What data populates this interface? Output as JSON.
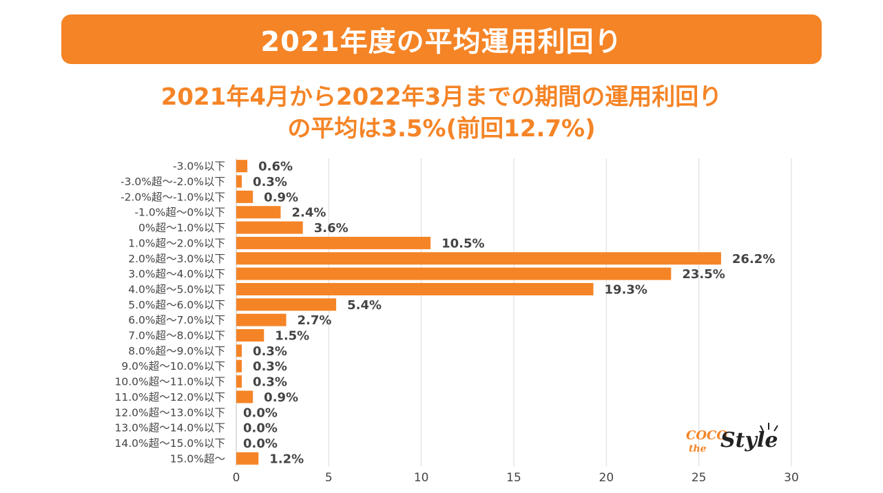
{
  "header": {
    "title": "2021年度の平均運用利回り",
    "subtitle_line1": "2021年4月から2022年3月までの期間の運用利回り",
    "subtitle_line2": "の平均は3.5%(前回12.7%)"
  },
  "logo": {
    "coco": "COCO",
    "the": "the",
    "style": "Style"
  },
  "colors": {
    "accent": "#f58426",
    "text": "#444444",
    "grid": "#d9d9d9"
  },
  "chart_data": {
    "type": "bar",
    "orientation": "horizontal",
    "categories": [
      "-3.0%以下",
      "-3.0%超～-2.0%以下",
      "-2.0%超～-1.0%以下",
      "-1.0%超～0%以下",
      "0%超～1.0%以下",
      "1.0%超～2.0%以下",
      "2.0%超～3.0%以下",
      "3.0%超～4.0%以下",
      "4.0%超～5.0%以下",
      "5.0%超～6.0%以下",
      "6.0%超～7.0%以下",
      "7.0%超～8.0%以下",
      "8.0%超～9.0%以下",
      "9.0%超～10.0%以下",
      "10.0%超～11.0%以下",
      "11.0%超～12.0%以下",
      "12.0%超～13.0%以下",
      "13.0%超～14.0%以下",
      "14.0%超～15.0%以下",
      "15.0%超～"
    ],
    "values": [
      0.6,
      0.3,
      0.9,
      2.4,
      3.6,
      10.5,
      26.2,
      23.5,
      19.3,
      5.4,
      2.7,
      1.5,
      0.3,
      0.3,
      0.3,
      0.9,
      0.0,
      0.0,
      0.0,
      1.2
    ],
    "value_labels": [
      "0.6%",
      "0.3%",
      "0.9%",
      "2.4%",
      "3.6%",
      "10.5%",
      "26.2%",
      "23.5%",
      "19.3%",
      "5.4%",
      "2.7%",
      "1.5%",
      "0.3%",
      "0.3%",
      "0.3%",
      "0.9%",
      "0.0%",
      "0.0%",
      "0.0%",
      "1.2%"
    ],
    "xlim": [
      0,
      30
    ],
    "xticks": [
      "0",
      "5",
      "10",
      "15",
      "20",
      "25",
      "30"
    ],
    "grid": true,
    "legend": "none"
  }
}
